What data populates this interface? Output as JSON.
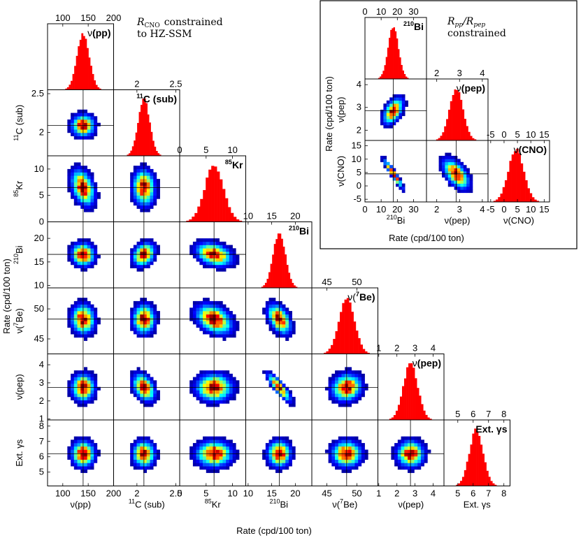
{
  "chart_data": [
    {
      "type": "corner-plot",
      "title": "R_CNO constrained to HZ-SSM",
      "title_math": "R",
      "title_math_sub": "CNO",
      "title_line1_text": "constrained",
      "title_line2_text": "to HZ-SSM",
      "xlabel": "Rate (cpd/100 ton)",
      "ylabel": "Rate (cpd/100 ton)",
      "variables": [
        {
          "key": "pp",
          "axis_label": "ν(pp)",
          "title_prefix": "ν",
          "title_bold": "(pp)",
          "center": 140,
          "sd": 12,
          "range": [
            70,
            200
          ],
          "ticks": [
            100,
            150,
            200
          ]
        },
        {
          "key": "c11",
          "axis_label_sup": "11",
          "axis_label": "C (sub)",
          "title_sup": "11",
          "title_bold": "C (sub)",
          "center": 2.09,
          "sd": 0.075,
          "range": [
            1.7,
            2.55
          ],
          "ticks": [
            2,
            2.5
          ]
        },
        {
          "key": "kr85",
          "axis_label_sup": "85",
          "axis_label": "Kr",
          "title_sup": "85",
          "title_bold": "Kr",
          "center": 6.5,
          "sd": 1.8,
          "range": [
            0,
            12.5
          ],
          "ticks": [
            0,
            5,
            10
          ]
        },
        {
          "key": "bi210",
          "axis_label_sup": "210",
          "axis_label": "Bi",
          "title_sup": "210",
          "title_bold": "Bi",
          "center": 16.6,
          "sd": 1.3,
          "range": [
            9.5,
            23.5
          ],
          "ticks": [
            10,
            15,
            20
          ]
        },
        {
          "key": "be7",
          "axis_label": "ν(",
          "axis_label_sup": "7",
          "axis_label_end": "Be)",
          "title_prefix": "ν(",
          "title_sup": "7",
          "title_bold": "Be)",
          "center": 48.3,
          "sd": 1.3,
          "range": [
            42.5,
            53.5
          ],
          "ticks": [
            45,
            50
          ]
        },
        {
          "key": "pep",
          "axis_label": "ν(pep)",
          "title_prefix": "ν",
          "title_bold": "(pep)",
          "center": 2.75,
          "sd": 0.4,
          "range": [
            0.95,
            4.6
          ],
          "ticks": [
            1,
            2,
            3,
            4
          ]
        },
        {
          "key": "gamma",
          "axis_label": "Ext. γs",
          "title_bold": "Ext. γs",
          "center": 6.2,
          "sd": 0.45,
          "range": [
            4.1,
            8.4
          ],
          "ticks": [
            5,
            6,
            7,
            8
          ]
        }
      ],
      "correlations": {
        "pp-kr85": -0.35,
        "pp-bi210": -0.05,
        "c11-kr85": -0.05,
        "c11-bi210": 0.25,
        "c11-pep": -0.35,
        "kr85-bi210": -0.3,
        "kr85-be7": -0.35,
        "bi210-be7": -0.45,
        "bi210-pep": -0.85,
        "be7-pep": 0.1,
        "pp-be7": -0.05,
        "pp-c11": 0.0
      }
    },
    {
      "type": "corner-plot",
      "title_math": "R",
      "title_math_sub1": "pp",
      "title_math_div": "/R",
      "title_math_sub2": "pep",
      "title_line2_text": "constrained",
      "xlabel": "Rate (cpd/100 ton)",
      "ylabel": "Rate (cpd/100 ton)",
      "variables": [
        {
          "key": "bi210",
          "axis_label_sup": "210",
          "axis_label": "Bi",
          "title_sup": "210",
          "title_bold": "Bi",
          "center": 17.5,
          "sd": 3.2,
          "range": [
            0,
            38
          ],
          "ticks": [
            0,
            10,
            20,
            30
          ]
        },
        {
          "key": "pep",
          "axis_label": "ν(pep)",
          "title_prefix": "ν",
          "title_bold": "(pep)",
          "center": 2.85,
          "sd": 0.3,
          "range": [
            1.55,
            4.25
          ],
          "ticks": [
            2,
            3,
            4
          ]
        },
        {
          "key": "cno",
          "axis_label": "ν(CNO)",
          "title_prefix": "ν",
          "title_bold": "(CNO)",
          "center": 4.5,
          "sd": 2.9,
          "range": [
            -6,
            17
          ],
          "ticks": [
            -5,
            0,
            5,
            10,
            15
          ]
        }
      ],
      "correlations": {
        "bi210-pep": 0.5,
        "bi210-cno": -0.95,
        "pep-cno": -0.55
      }
    }
  ]
}
